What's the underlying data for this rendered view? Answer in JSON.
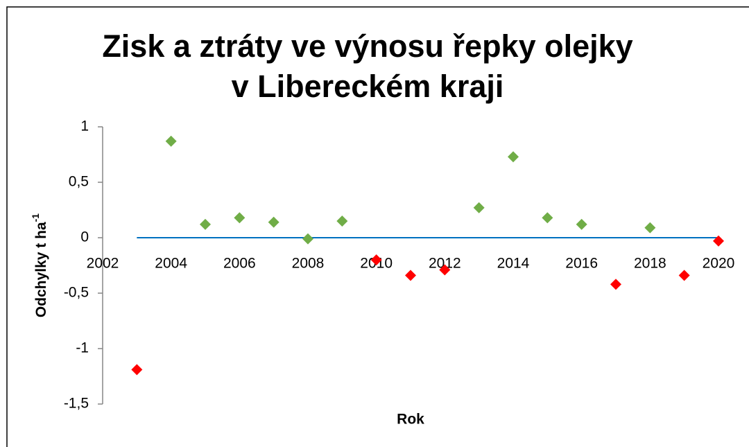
{
  "chart_data": {
    "type": "scatter",
    "title": "Zisk a ztráty ve výnosu řepky olejky v Libereckém kraji",
    "xlabel": "Rok",
    "ylabel": "Odchylky t ha",
    "ylabel_superscript": "-1",
    "x": [
      2003,
      2004,
      2005,
      2006,
      2007,
      2008,
      2009,
      2010,
      2011,
      2012,
      2013,
      2014,
      2015,
      2016,
      2017,
      2018,
      2019,
      2020
    ],
    "values": [
      -1.19,
      0.87,
      0.12,
      0.18,
      0.14,
      -0.01,
      0.15,
      -0.2,
      -0.34,
      -0.29,
      0.27,
      0.73,
      0.18,
      0.12,
      -0.42,
      0.09,
      -0.34,
      -0.03
    ],
    "colors": [
      "#ff0000",
      "#70ad47",
      "#70ad47",
      "#70ad47",
      "#70ad47",
      "#70ad47",
      "#70ad47",
      "#ff0000",
      "#ff0000",
      "#ff0000",
      "#70ad47",
      "#70ad47",
      "#70ad47",
      "#70ad47",
      "#ff0000",
      "#70ad47",
      "#ff0000",
      "#ff0000"
    ],
    "xlim": [
      2002,
      2020
    ],
    "xticks": [
      2002,
      2004,
      2006,
      2008,
      2010,
      2012,
      2014,
      2016,
      2018,
      2020
    ],
    "ylim": [
      -1.5,
      1
    ],
    "yticks": [
      {
        "value": -1.5,
        "label": "-1,5"
      },
      -1,
      {
        "value": -0.5,
        "label": "-0,5"
      },
      0,
      {
        "value": 0.5,
        "label": "0,5"
      },
      1
    ],
    "axis_color": "#0070c0"
  }
}
